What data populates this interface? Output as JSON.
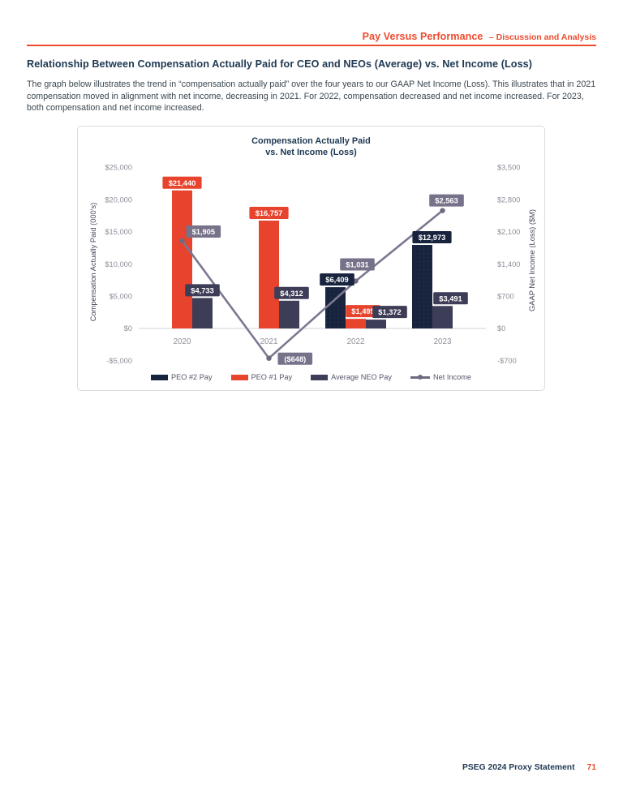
{
  "page": {
    "header": {
      "title": "Pay Versus Performance",
      "subtitle": "– Discussion and Analysis"
    },
    "section_heading": "Relationship Between Compensation Actually Paid for CEO and NEOs (Average) vs. Net Income (Loss)",
    "paragraph": "The graph below illustrates the trend in “compensation actually paid” over the four years to our GAAP Net Income (Loss). This illustrates that in 2021 compensation moved in alignment with net income, decreasing in 2021. For 2022, compensation decreased and net income increased. For 2023, both compensation and net income increased.",
    "footer": {
      "text": "PSEG 2024 Proxy Statement",
      "page_number": "71"
    }
  },
  "colors": {
    "accent_red": "#EE4B2F",
    "heading_navy": "#203A54",
    "tick_gray": "#8F8E99",
    "zero_line": "#DCDCE0"
  },
  "chart_data": {
    "type": "bar",
    "subtype": "clustered-bar-with-line",
    "title_line1": "Compensation Actually Paid",
    "title_line2": "vs. Net Income (Loss)",
    "categories": [
      "2020",
      "2021",
      "2022",
      "2023"
    ],
    "left_axis": {
      "label": "Compensation Actually Paid (000's)",
      "ticks": [
        "$25,000",
        "$20,000",
        "$15,000",
        "$10,000",
        "$5,000",
        "$0",
        "-$5,000"
      ],
      "range": [
        -5000,
        25000
      ]
    },
    "right_axis": {
      "label": "GAAP Net Income (Loss) ($M)",
      "ticks": [
        "$3,500",
        "$2,800",
        "$2,100",
        "$1,400",
        "$700",
        "$0",
        "-$700"
      ],
      "range": [
        -700,
        3500
      ]
    },
    "series": [
      {
        "name": "PEO #2 Pay",
        "type": "bar",
        "axis": "left",
        "color": "#18243E",
        "values": [
          null,
          null,
          6409,
          12973
        ],
        "labels": [
          null,
          null,
          "$6,409",
          "$12,973"
        ],
        "slots": [
          null,
          null,
          1,
          1
        ]
      },
      {
        "name": "PEO #1 Pay",
        "type": "bar",
        "axis": "left",
        "color": "#E8432D",
        "values": [
          21440,
          16757,
          1495,
          null
        ],
        "labels": [
          "$21,440",
          "$16,757",
          "$1,495",
          null
        ],
        "slots": [
          2,
          2,
          2,
          null
        ]
      },
      {
        "name": "Average NEO Pay",
        "type": "bar",
        "axis": "left",
        "color": "#3E3D58",
        "values": [
          4733,
          4312,
          1372,
          3491
        ],
        "labels": [
          "$4,733",
          "$4,312",
          "$1,372",
          "$3,491"
        ],
        "slots": [
          3,
          3,
          3,
          2
        ]
      },
      {
        "name": "Net Income",
        "type": "line",
        "axis": "right",
        "color": "#7C7790",
        "marker_color": "#6F6A80",
        "label_box_color": "#77728A",
        "values": [
          1905,
          -648,
          1031,
          2563
        ],
        "labels": [
          "$1,905",
          "($648)",
          "$1,031",
          "$2,563"
        ]
      }
    ],
    "legend_position": "bottom",
    "grid": "zero-line-only"
  }
}
